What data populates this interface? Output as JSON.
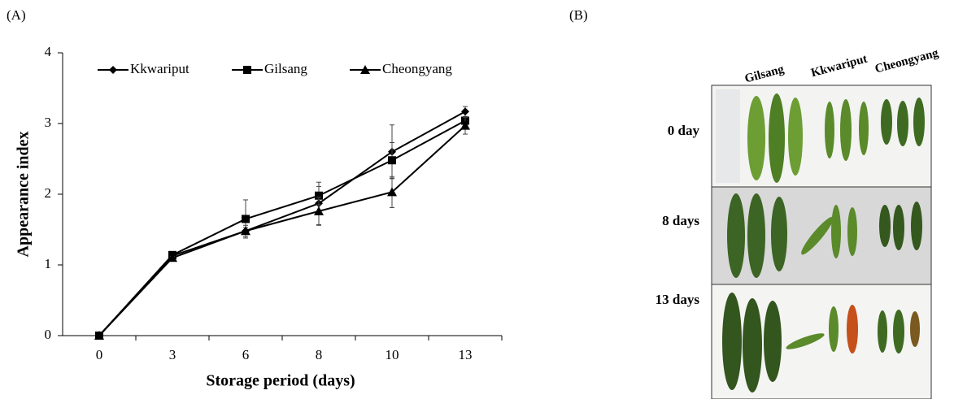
{
  "chart_data": {
    "type": "line",
    "panel_label": "(A)",
    "x_label": "Storage period (days)",
    "y_label": "Appearance index",
    "categories": [
      "0",
      "3",
      "6",
      "8",
      "10",
      "13"
    ],
    "ylim": [
      0,
      4
    ],
    "yticks": [
      0,
      1,
      2,
      3,
      4
    ],
    "legend": "top",
    "series": [
      {
        "name": "Kkwariput",
        "color": "#000000",
        "marker": "diamond",
        "values": [
          0,
          1.13,
          1.48,
          1.87,
          2.6,
          3.17
        ],
        "errors": [
          0,
          0.02,
          0.05,
          0.3,
          0.38,
          0.07
        ]
      },
      {
        "name": "Gilsang",
        "color": "#000000",
        "marker": "square",
        "values": [
          0,
          1.14,
          1.65,
          1.98,
          2.48,
          3.04
        ],
        "errors": [
          0,
          0.02,
          0.27,
          0.13,
          0.25,
          0.05
        ]
      },
      {
        "name": "Cheongyang",
        "color": "#000000",
        "marker": "triangle",
        "values": [
          0,
          1.1,
          1.48,
          1.76,
          2.03,
          2.97
        ],
        "errors": [
          0,
          0.02,
          0.08,
          0.2,
          0.22,
          0.12
        ]
      }
    ]
  },
  "photo_panel": {
    "panel_label": "(B)",
    "column_labels": [
      "Gilsang",
      "Kkwariput",
      "Cheongyang"
    ],
    "row_labels": [
      "0 day",
      "8 days",
      "13 days"
    ]
  }
}
